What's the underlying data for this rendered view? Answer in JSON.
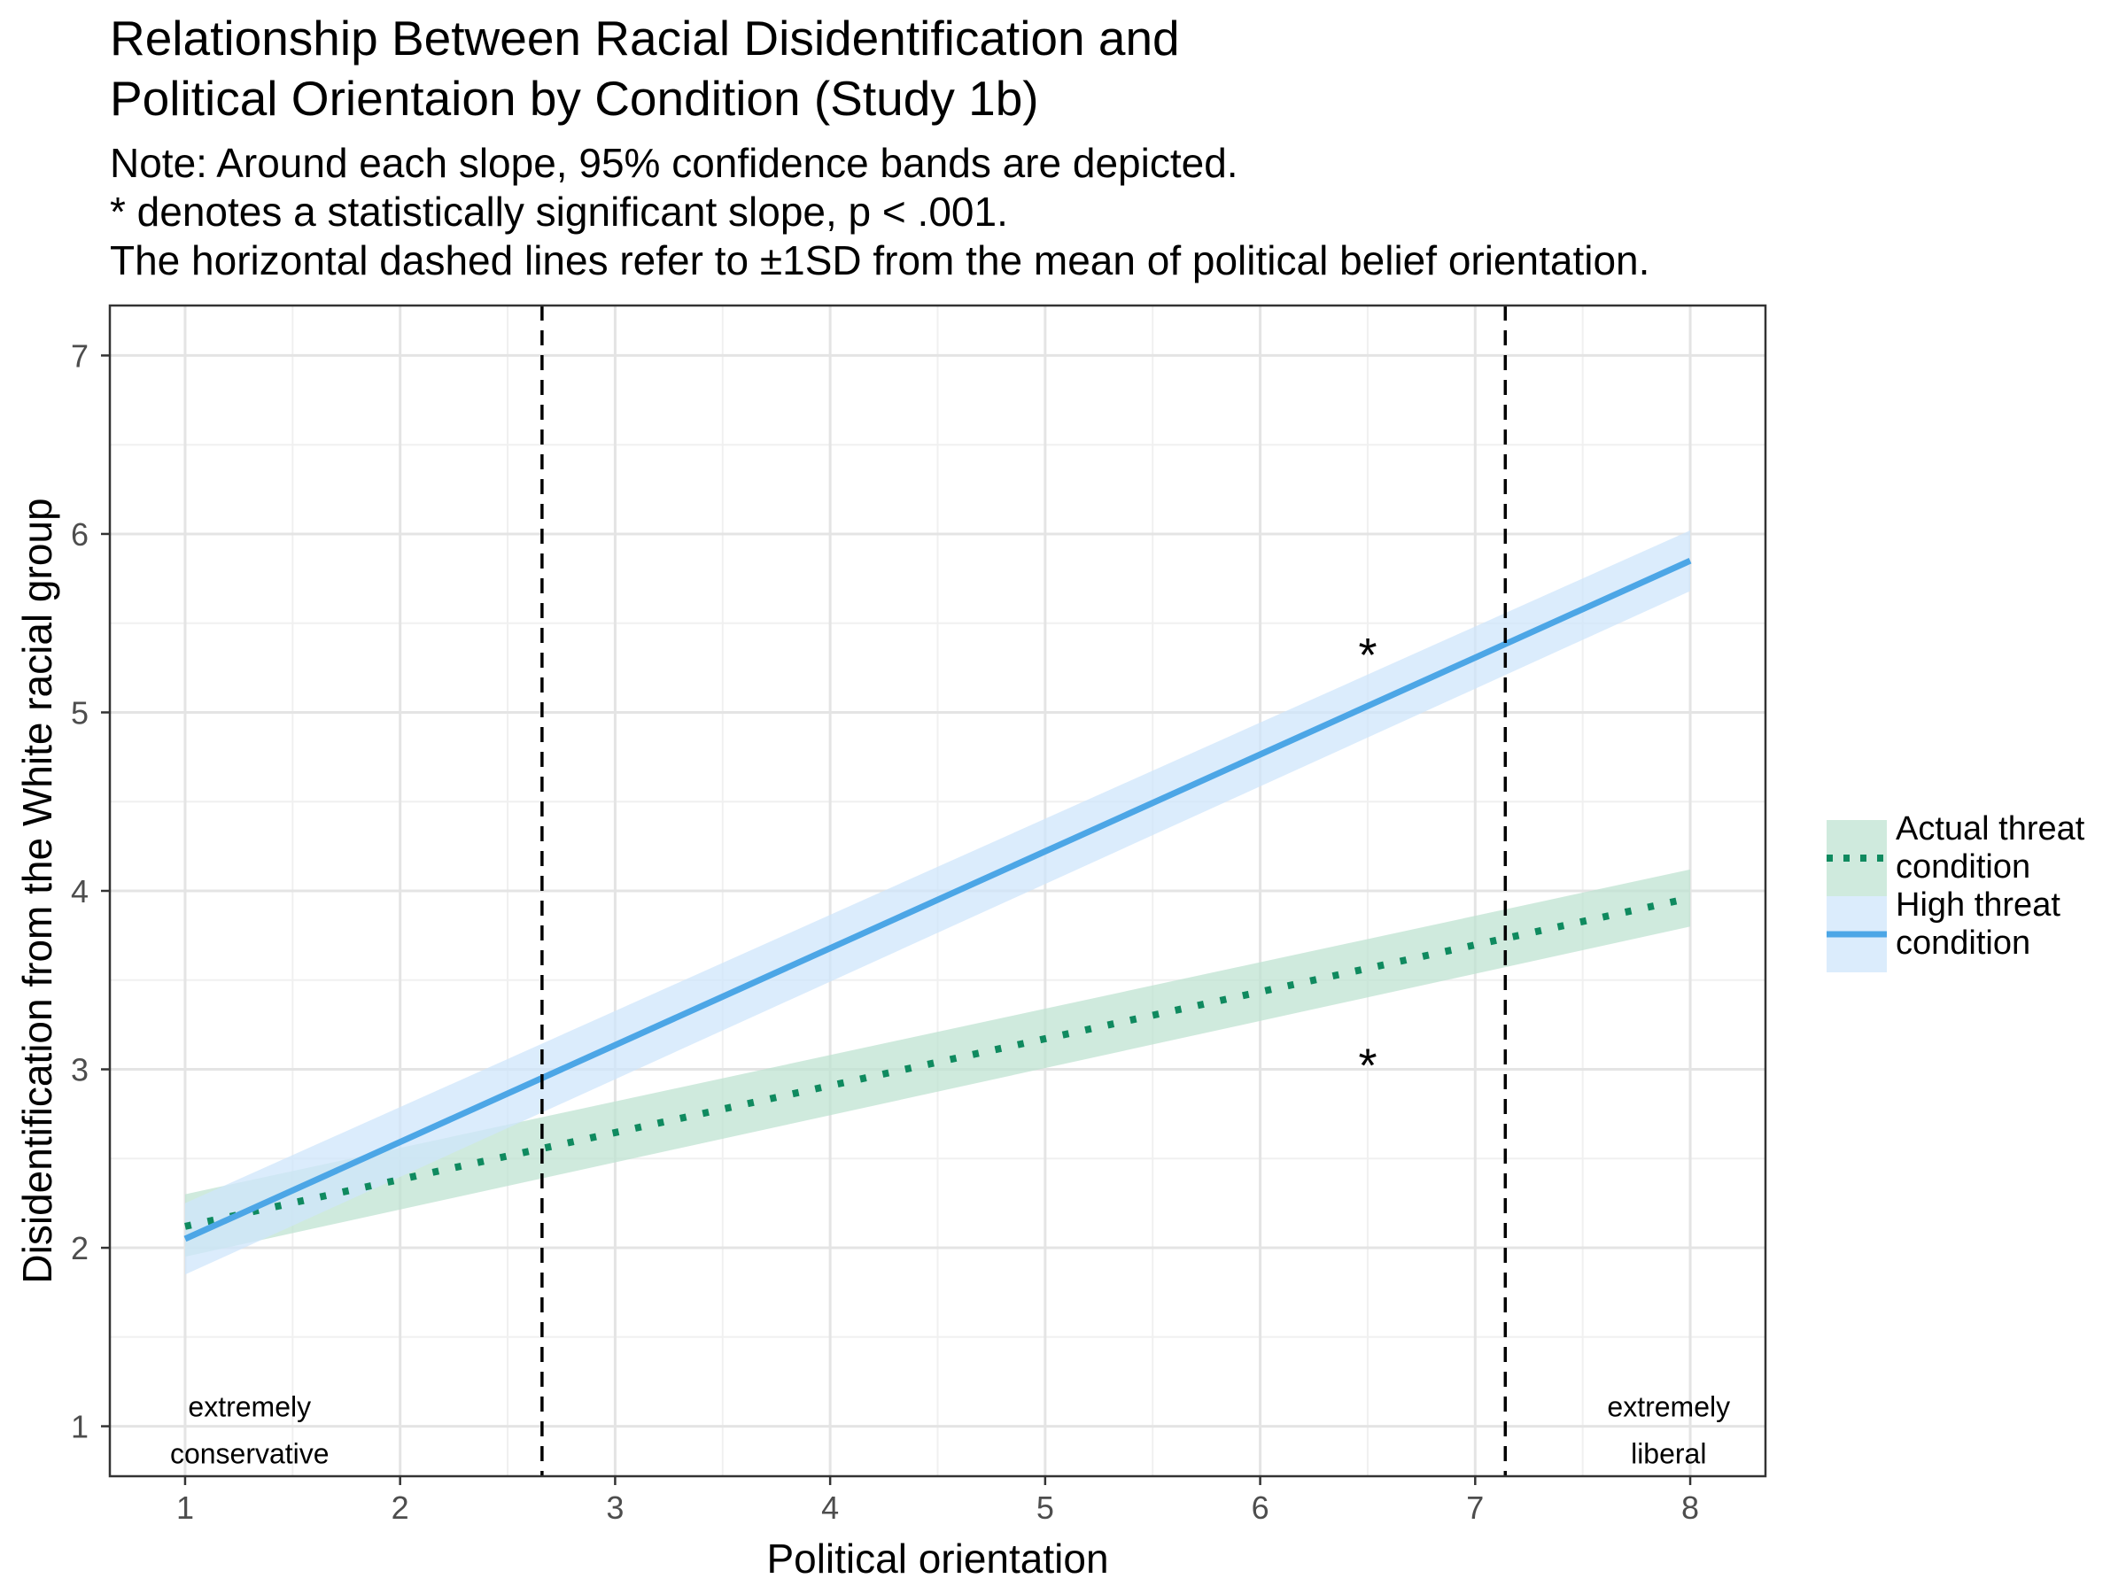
{
  "chart_data": {
    "type": "line",
    "title": [
      "Relationship Between Racial Disidentification and",
      "Political Orientaion by Condition (Study 1b)"
    ],
    "subtitle": [
      "Note: Around each slope, 95% confidence bands are depicted.",
      "* denotes a statistically significant slope, p < .001.",
      "The horizontal dashed lines refer to ±1SD from the mean of political belief orientation."
    ],
    "xlabel": "Political orientation",
    "ylabel": "Disidentification from the White racial group",
    "xlim": [
      0.65,
      8.35
    ],
    "ylim": [
      0.72,
      7.28
    ],
    "xticks": [
      1,
      2,
      3,
      4,
      5,
      6,
      7,
      8
    ],
    "yticks": [
      1,
      2,
      3,
      4,
      5,
      6,
      7
    ],
    "grid": true,
    "legend_position": "right",
    "series": [
      {
        "name": "Actual threat condition",
        "legend_lines": [
          "Actual threat",
          "condition"
        ],
        "color": "#0f8a5f",
        "band_color": "#bfe3d1",
        "linestyle": "dotted",
        "x": [
          1,
          8
        ],
        "y": [
          2.12,
          3.96
        ],
        "ci_lower": [
          1.95,
          3.8
        ],
        "ci_upper": [
          2.3,
          4.12
        ]
      },
      {
        "name": "High threat condition",
        "legend_lines": [
          "High threat",
          "condition"
        ],
        "color": "#4ca6e6",
        "band_color": "#cfe6fb",
        "linestyle": "solid",
        "x": [
          1,
          8
        ],
        "y": [
          2.05,
          5.85
        ],
        "ci_lower": [
          1.85,
          5.68
        ],
        "ci_upper": [
          2.25,
          6.02
        ]
      }
    ],
    "vlines": [
      2.66,
      7.14
    ],
    "annotations": [
      {
        "text": "*",
        "x": 6.5,
        "y": 5.42
      },
      {
        "text": "*",
        "x": 6.5,
        "y": 3.12
      },
      {
        "lines": [
          "extremely",
          "conservative"
        ],
        "x": 1.3,
        "y": 1.0
      },
      {
        "lines": [
          "extremely",
          "liberal"
        ],
        "x": 7.9,
        "y": 1.0
      }
    ]
  }
}
